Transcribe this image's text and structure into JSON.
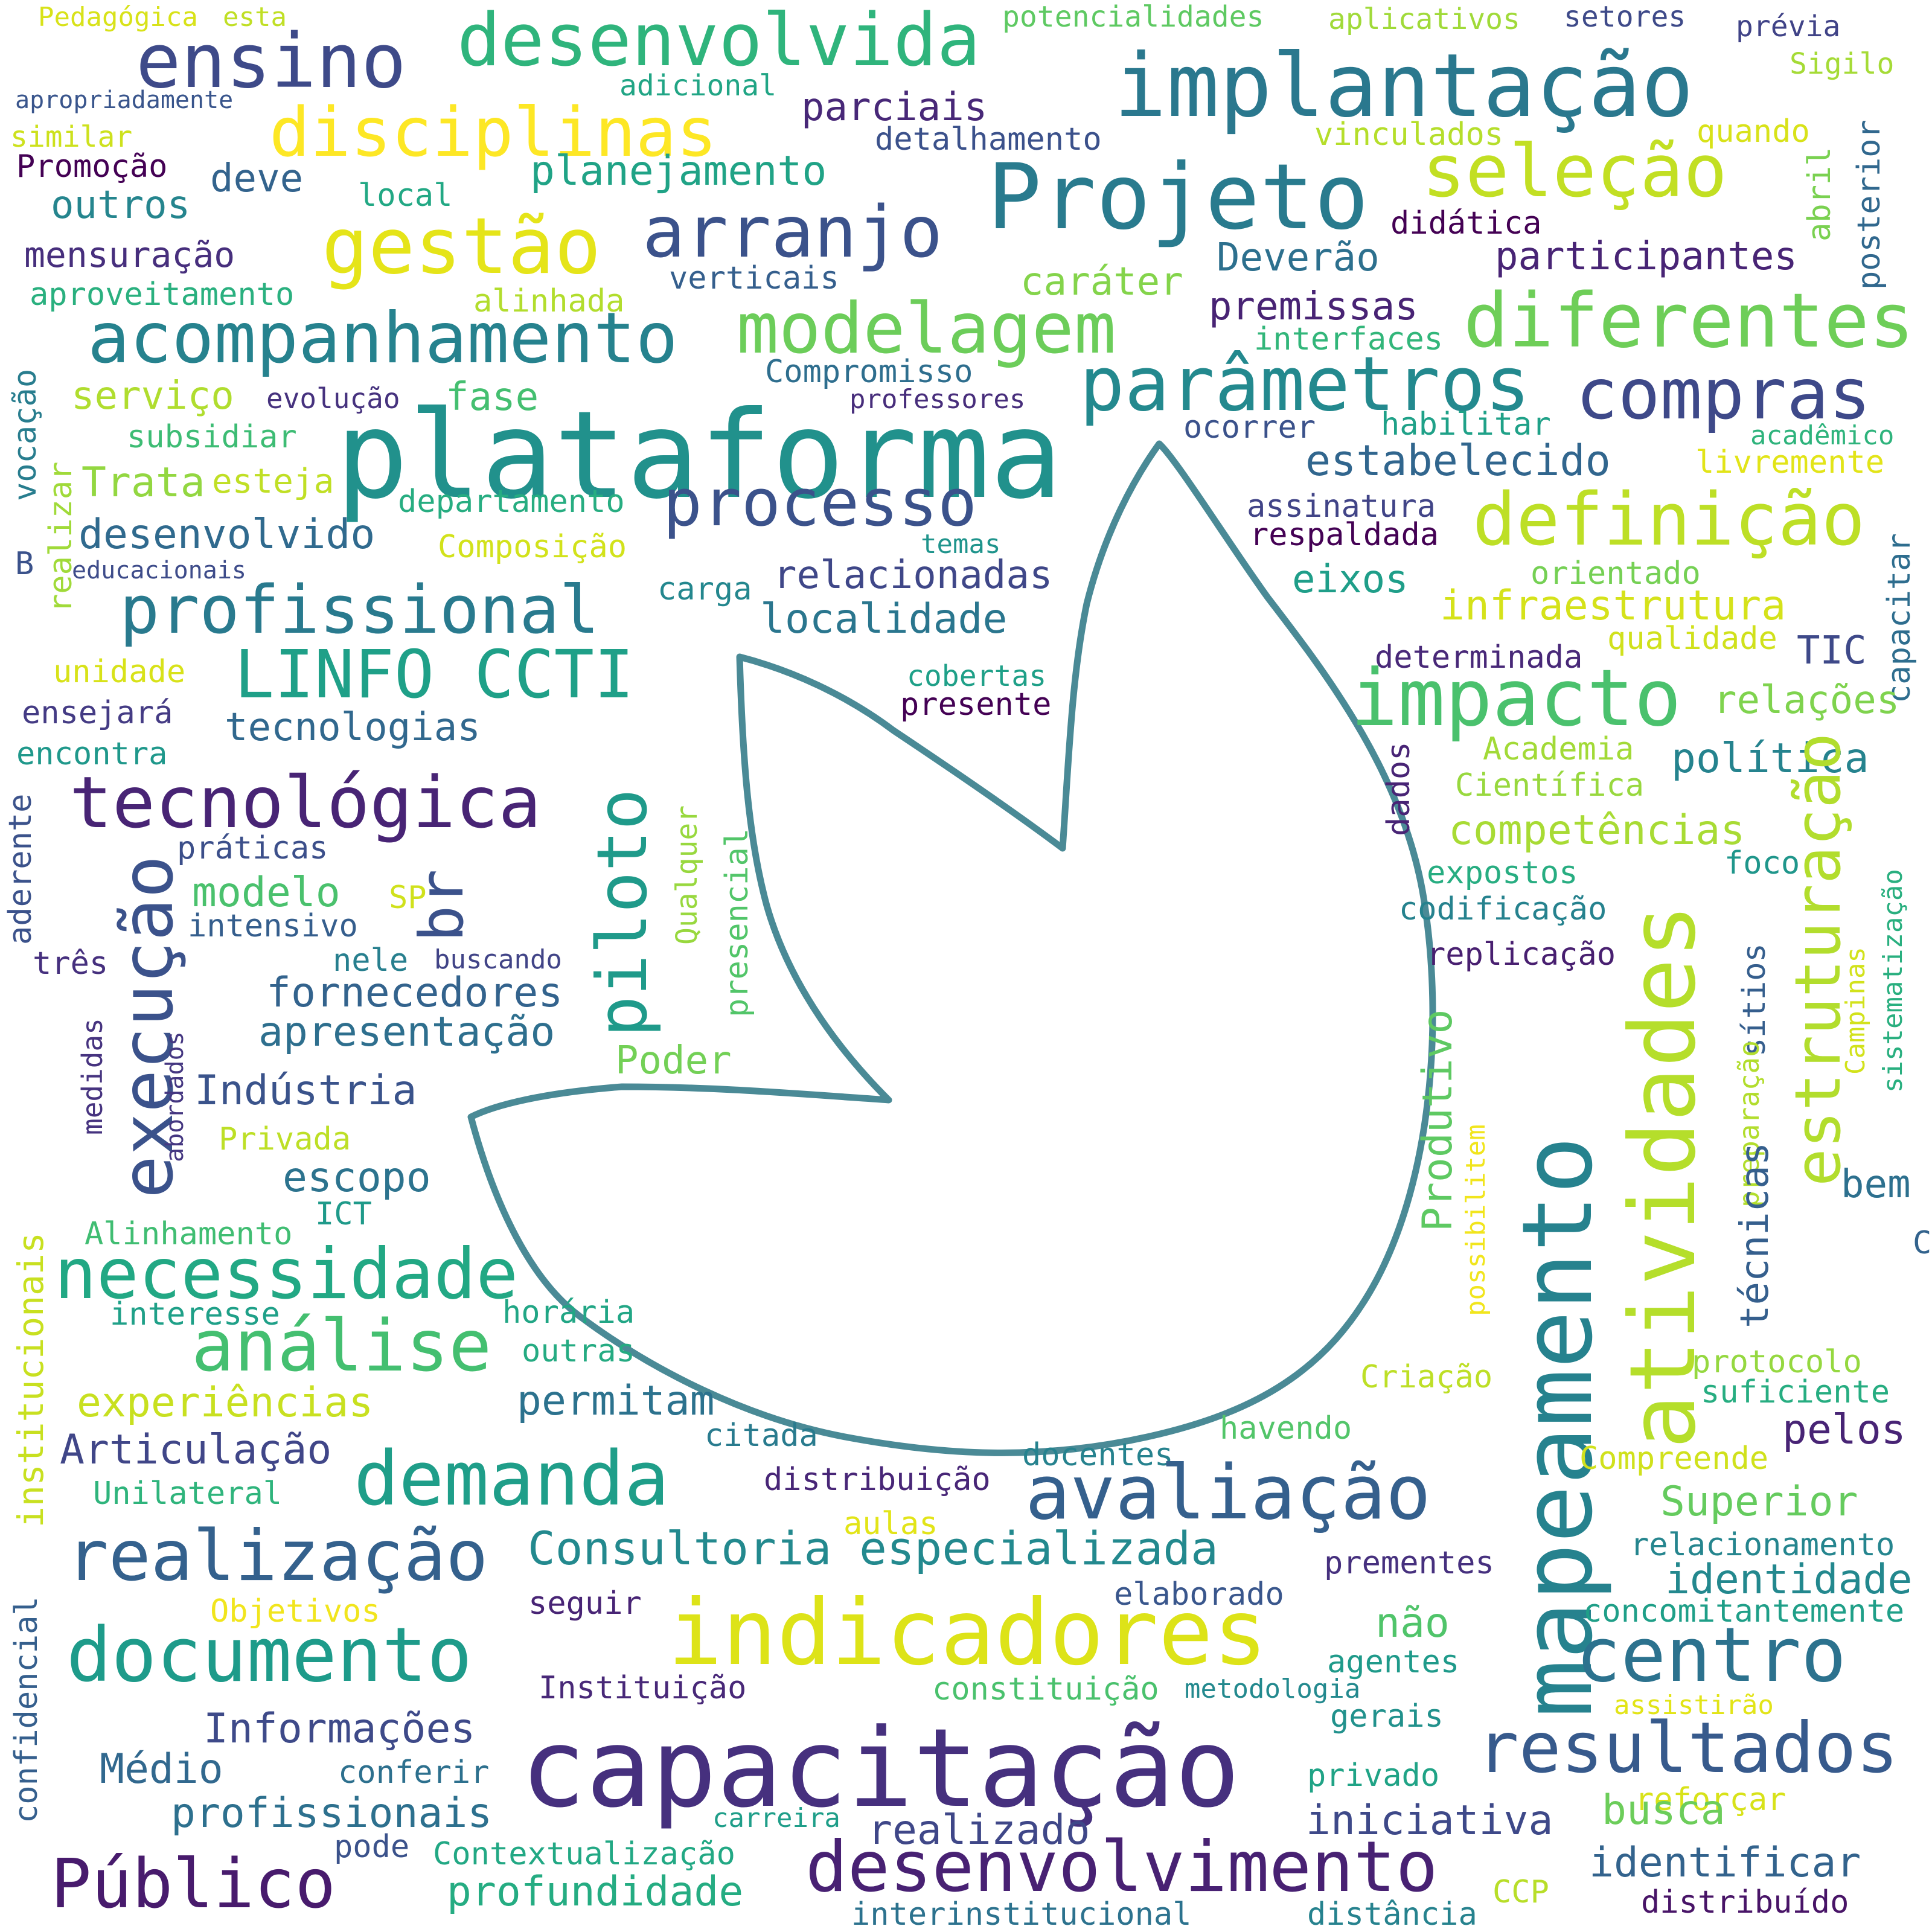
{
  "colors": {
    "background": "#ffffff",
    "outline": "#4a8a96"
  },
  "icon": "leaf-outline-icon",
  "words": [
    {
      "text": "Pedagógica",
      "color": "#d8e219"
    },
    {
      "text": "esta",
      "color": "#c0df25"
    },
    {
      "text": "ensino",
      "color": "#3e4a89"
    },
    {
      "text": "desenvolvida",
      "color": "#2fb47c"
    },
    {
      "text": "potencialidades",
      "color": "#5ec962"
    },
    {
      "text": "aplicativos",
      "color": "#a0da39"
    },
    {
      "text": "setores",
      "color": "#3e4a89"
    },
    {
      "text": "prévia",
      "color": "#404387"
    },
    {
      "text": "Sigilo",
      "color": "#a5db36"
    },
    {
      "text": "apropriadamente",
      "color": "#39558c"
    },
    {
      "text": "adicional",
      "color": "#21a585"
    },
    {
      "text": "implantação",
      "color": "#2a788e"
    },
    {
      "text": "disciplinas",
      "color": "#fde725"
    },
    {
      "text": "parciais",
      "color": "#482878"
    },
    {
      "text": "similar",
      "color": "#cde11d"
    },
    {
      "text": "detalhamento",
      "color": "#3b518b"
    },
    {
      "text": "vinculados",
      "color": "#b5de2b"
    },
    {
      "text": "quando",
      "color": "#d8e219"
    },
    {
      "text": "posterior",
      "color": "#31688e"
    },
    {
      "text": "abril",
      "color": "#7ad151"
    },
    {
      "text": "Promoção",
      "color": "#440154"
    },
    {
      "text": "deve",
      "color": "#33638d"
    },
    {
      "text": "planejamento",
      "color": "#20a386"
    },
    {
      "text": "seleção",
      "color": "#c2df23"
    },
    {
      "text": "outros",
      "color": "#25858e"
    },
    {
      "text": "local",
      "color": "#22a884"
    },
    {
      "text": "Projeto",
      "color": "#297b8e"
    },
    {
      "text": "didática",
      "color": "#440154"
    },
    {
      "text": "gestão",
      "color": "#e5e419"
    },
    {
      "text": "arranjo",
      "color": "#3b528b"
    },
    {
      "text": "mensuração",
      "color": "#472f7d"
    },
    {
      "text": "verticais",
      "color": "#355f8d"
    },
    {
      "text": "Deverão",
      "color": "#2d708e"
    },
    {
      "text": "participantes",
      "color": "#482475"
    },
    {
      "text": "aproveitamento",
      "color": "#2ab07f"
    },
    {
      "text": "alinhada",
      "color": "#b2dd2d"
    },
    {
      "text": "caráter",
      "color": "#84d44b"
    },
    {
      "text": "premissas",
      "color": "#482374"
    },
    {
      "text": "acompanhamento",
      "color": "#26828e"
    },
    {
      "text": "modelagem",
      "color": "#6ccd5a"
    },
    {
      "text": "interfaces",
      "color": "#32b67a"
    },
    {
      "text": "diferentes",
      "color": "#6ece58"
    },
    {
      "text": "parâmetros",
      "color": "#23898e"
    },
    {
      "text": "compras",
      "color": "#3e4989"
    },
    {
      "text": "Compromisso",
      "color": "#2e6e8e"
    },
    {
      "text": "vocação",
      "color": "#287d8e"
    },
    {
      "text": "serviço",
      "color": "#b0dd2f"
    },
    {
      "text": "evolução",
      "color": "#46327e"
    },
    {
      "text": "fase",
      "color": "#44bf70"
    },
    {
      "text": "professores",
      "color": "#472d7b"
    },
    {
      "text": "plataforma",
      "color": "#21918c"
    },
    {
      "text": "subsidiar",
      "color": "#3dbc74"
    },
    {
      "text": "ocorrer",
      "color": "#3b528b"
    },
    {
      "text": "habilitar",
      "color": "#1fa188"
    },
    {
      "text": "acadêmico",
      "color": "#2eb37c"
    },
    {
      "text": "livremente",
      "color": "#e2e418"
    },
    {
      "text": "estabelecido",
      "color": "#31668e"
    },
    {
      "text": "realizar",
      "color": "#a0da39"
    },
    {
      "text": "Trata",
      "color": "#93d741"
    },
    {
      "text": "esteja",
      "color": "#c0df25"
    },
    {
      "text": "departamento",
      "color": "#27ad81"
    },
    {
      "text": "processo",
      "color": "#3b528b"
    },
    {
      "text": "assinatura",
      "color": "#414487"
    },
    {
      "text": "definição",
      "color": "#bddf26"
    },
    {
      "text": "desenvolvido",
      "color": "#306a8e"
    },
    {
      "text": "temas",
      "color": "#1f948c"
    },
    {
      "text": "respaldada",
      "color": "#440154"
    },
    {
      "text": "Composição",
      "color": "#d2e21b"
    },
    {
      "text": "B",
      "color": "#3b528b"
    },
    {
      "text": "educacionais",
      "color": "#3e4c8a"
    },
    {
      "text": "relacionadas",
      "color": "#3f4788"
    },
    {
      "text": "eixos",
      "color": "#1f9e89"
    },
    {
      "text": "orientado",
      "color": "#75d054"
    },
    {
      "text": "profissional",
      "color": "#297a8e"
    },
    {
      "text": "carga",
      "color": "#24878e"
    },
    {
      "text": "infraestrutura",
      "color": "#d5e21a"
    },
    {
      "text": "localidade",
      "color": "#2a768e"
    },
    {
      "text": "qualidade",
      "color": "#d0e11c"
    },
    {
      "text": "capacitar",
      "color": "#2e6d8e"
    },
    {
      "text": "LINFO CCTI",
      "color": "#1fa088"
    },
    {
      "text": "determinada",
      "color": "#482878"
    },
    {
      "text": "TIC",
      "color": "#3e4989"
    },
    {
      "text": "unidade",
      "color": "#d8e219"
    },
    {
      "text": "cobertas",
      "color": "#1fa088"
    },
    {
      "text": "impacto",
      "color": "#4ac16d"
    },
    {
      "text": "relações",
      "color": "#7fd34e"
    },
    {
      "text": "ensejará",
      "color": "#443b84"
    },
    {
      "text": "presente",
      "color": "#440154"
    },
    {
      "text": "tecnologias",
      "color": "#31688e"
    },
    {
      "text": "dados",
      "color": "#482475"
    },
    {
      "text": "Academia",
      "color": "#a2da37"
    },
    {
      "text": "encontra",
      "color": "#1f988b"
    },
    {
      "text": "política",
      "color": "#25838e"
    },
    {
      "text": "Científica",
      "color": "#98d83e"
    },
    {
      "text": "tecnológica",
      "color": "#482475"
    },
    {
      "text": "piloto",
      "color": "#1f9a8a"
    },
    {
      "text": "Qualquer",
      "color": "#98d83e"
    },
    {
      "text": "aderente",
      "color": "#3b528b"
    },
    {
      "text": "práticas",
      "color": "#3c4f8a"
    },
    {
      "text": "competências",
      "color": "#a8db34"
    },
    {
      "text": "sistematização",
      "color": "#29af7f"
    },
    {
      "text": "execução",
      "color": "#3b528b"
    },
    {
      "text": "br",
      "color": "#3b528b"
    },
    {
      "text": "estruturação",
      "color": "#b2dd2d"
    },
    {
      "text": "foco",
      "color": "#1f968b"
    },
    {
      "text": "modelo",
      "color": "#4ac16d"
    },
    {
      "text": "SP",
      "color": "#d0e11c"
    },
    {
      "text": "expostos",
      "color": "#27ad81"
    },
    {
      "text": "intensivo",
      "color": "#355e8d"
    },
    {
      "text": "presencial",
      "color": "#52c569"
    },
    {
      "text": "atividades",
      "color": "#b5de2b"
    },
    {
      "text": "codificação",
      "color": "#26828e"
    },
    {
      "text": "três",
      "color": "#46307e"
    },
    {
      "text": "nele",
      "color": "#277f8e"
    },
    {
      "text": "buscando",
      "color": "#414487"
    },
    {
      "text": "replicação",
      "color": "#481f70"
    },
    {
      "text": "Campinas",
      "color": "#d2e21b"
    },
    {
      "text": "fornecedores",
      "color": "#33638d"
    },
    {
      "text": "mapeamento",
      "color": "#26828e"
    },
    {
      "text": "sítios",
      "color": "#355e8d"
    },
    {
      "text": "medidas",
      "color": "#46337f"
    },
    {
      "text": "abordados",
      "color": "#453781"
    },
    {
      "text": "apresentação",
      "color": "#2e6f8e"
    },
    {
      "text": "preparação",
      "color": "#b2dd2d"
    },
    {
      "text": "Produtivo",
      "color": "#5ec962"
    },
    {
      "text": "Poder",
      "color": "#73d056"
    },
    {
      "text": "Indústria",
      "color": "#3a538b"
    },
    {
      "text": "possibilitem",
      "color": "#f1e51d"
    },
    {
      "text": "técnicas",
      "color": "#355f8d"
    },
    {
      "text": "Privada",
      "color": "#bddf26"
    },
    {
      "text": "escopo",
      "color": "#2c738e"
    },
    {
      "text": "bem",
      "color": "#2d708e"
    },
    {
      "text": "institucionais",
      "color": "#c8e020"
    },
    {
      "text": "ICT",
      "color": "#1f9a8a"
    },
    {
      "text": "Alinhamento",
      "color": "#40bd72"
    },
    {
      "text": "C",
      "color": "#33638d"
    },
    {
      "text": "necessidade",
      "color": "#22a884"
    },
    {
      "text": "interesse",
      "color": "#1fa088"
    },
    {
      "text": "horária",
      "color": "#21a685"
    },
    {
      "text": "análise",
      "color": "#44bf70"
    },
    {
      "text": "outras",
      "color": "#25ab82"
    },
    {
      "text": "Criação",
      "color": "#bddf26"
    },
    {
      "text": "protocolo",
      "color": "#95d840"
    },
    {
      "text": "experiências",
      "color": "#c8e020"
    },
    {
      "text": "permitam",
      "color": "#2c728e"
    },
    {
      "text": "suficiente",
      "color": "#27ad81"
    },
    {
      "text": "citada",
      "color": "#297b8e"
    },
    {
      "text": "havendo",
      "color": "#52c569"
    },
    {
      "text": "Articulação",
      "color": "#404688"
    },
    {
      "text": "demanda",
      "color": "#1f9e89"
    },
    {
      "text": "docentes",
      "color": "#26828e"
    },
    {
      "text": "pelos",
      "color": "#482475"
    },
    {
      "text": "Compreende",
      "color": "#d0e11c"
    },
    {
      "text": "distribuição",
      "color": "#482677"
    },
    {
      "text": "Unilateral",
      "color": "#2fb47c"
    },
    {
      "text": "avaliação",
      "color": "#35608d"
    },
    {
      "text": "Superior",
      "color": "#65cb5e"
    },
    {
      "text": "aulas",
      "color": "#e2e418"
    },
    {
      "text": "realização",
      "color": "#34618d"
    },
    {
      "text": "Consultoria especializada",
      "color": "#23898e"
    },
    {
      "text": "relacionamento",
      "color": "#25858e"
    },
    {
      "text": "prementes",
      "color": "#46307e"
    },
    {
      "text": "identidade",
      "color": "#23888e"
    },
    {
      "text": "confidencial",
      "color": "#355f8d"
    },
    {
      "text": "elaborado",
      "color": "#39568c"
    },
    {
      "text": "Objetivos",
      "color": "#f1e51d"
    },
    {
      "text": "seguir",
      "color": "#482475"
    },
    {
      "text": "concomitantemente",
      "color": "#1f9f88"
    },
    {
      "text": "documento",
      "color": "#1e9b8a"
    },
    {
      "text": "indicadores",
      "color": "#dde318"
    },
    {
      "text": "não",
      "color": "#50c46a"
    },
    {
      "text": "centro",
      "color": "#2c728e"
    },
    {
      "text": "agentes",
      "color": "#1f9a8a"
    },
    {
      "text": "Instituição",
      "color": "#482878"
    },
    {
      "text": "constituição",
      "color": "#4ac16d"
    },
    {
      "text": "metodologia",
      "color": "#23898e"
    },
    {
      "text": "assistirão",
      "color": "#e2e418"
    },
    {
      "text": "Informações",
      "color": "#3e4a89"
    },
    {
      "text": "gerais",
      "color": "#21918c"
    },
    {
      "text": "capacitação",
      "color": "#46307e"
    },
    {
      "text": "resultados",
      "color": "#375a8c"
    },
    {
      "text": "Médio",
      "color": "#31688e"
    },
    {
      "text": "conferir",
      "color": "#2d708e"
    },
    {
      "text": "privado",
      "color": "#20a386"
    },
    {
      "text": "profissionais",
      "color": "#2d708e"
    },
    {
      "text": "carreira",
      "color": "#1f9e89"
    },
    {
      "text": "reforçar",
      "color": "#d8e219"
    },
    {
      "text": "realizado",
      "color": "#3f4788"
    },
    {
      "text": "iniciativa",
      "color": "#3e4989"
    },
    {
      "text": "busca",
      "color": "#6ccd5a"
    },
    {
      "text": "pode",
      "color": "#3b528b"
    },
    {
      "text": "Contextualização",
      "color": "#22a884"
    },
    {
      "text": "desenvolvimento",
      "color": "#482173"
    },
    {
      "text": "identificar",
      "color": "#33638d"
    },
    {
      "text": "Público",
      "color": "#481b6d"
    },
    {
      "text": "profundidade",
      "color": "#25ac82"
    },
    {
      "text": "CCP",
      "color": "#b8de29"
    },
    {
      "text": "distribuído",
      "color": "#481467"
    },
    {
      "text": "interinstitucional",
      "color": "#2c728e"
    },
    {
      "text": "distância",
      "color": "#26828e"
    }
  ]
}
